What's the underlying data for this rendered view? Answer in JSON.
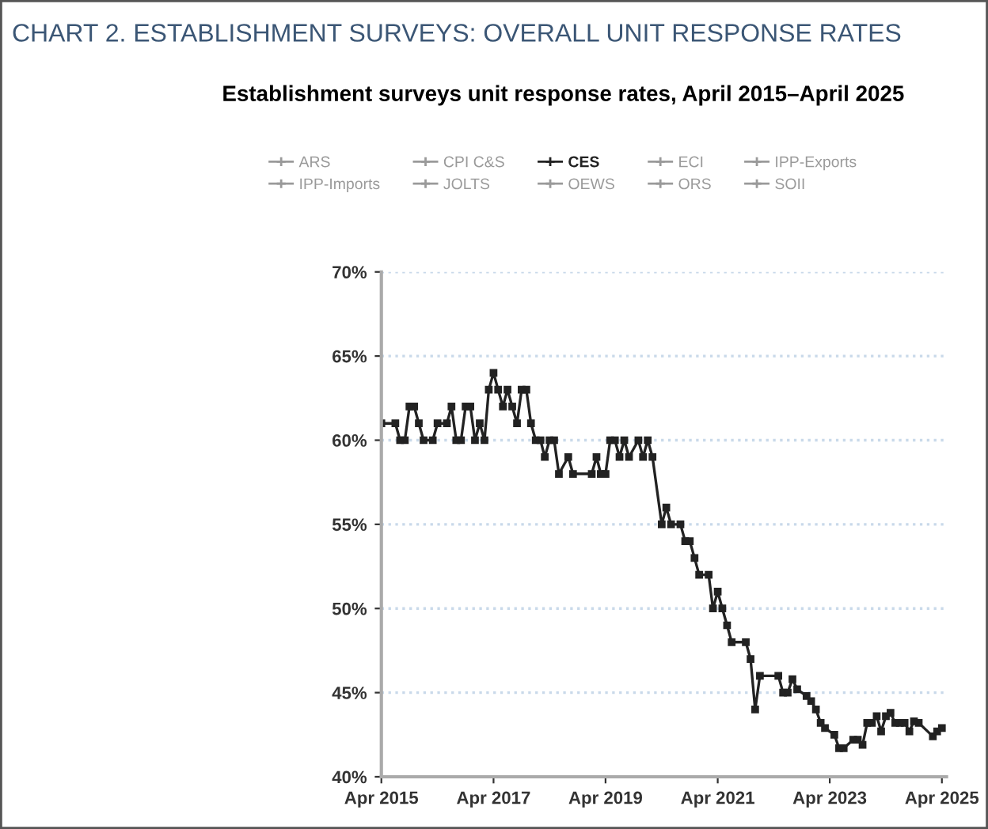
{
  "chart_data": {
    "type": "line",
    "title": "CHART 2. ESTABLISHMENT SURVEYS: OVERALL UNIT RESPONSE RATES",
    "subtitle": "Establishment surveys unit response rates, April 2015–April 2025",
    "x": [
      "2015-04",
      "2015-07",
      "2015-08",
      "2015-09",
      "2015-10",
      "2015-11",
      "2015-12",
      "2016-01",
      "2016-03",
      "2016-04",
      "2016-06",
      "2016-07",
      "2016-08",
      "2016-09",
      "2016-10",
      "2016-11",
      "2016-12",
      "2017-01",
      "2017-02",
      "2017-03",
      "2017-04",
      "2017-05",
      "2017-06",
      "2017-07",
      "2017-08",
      "2017-09",
      "2017-10",
      "2017-11",
      "2017-12",
      "2018-01",
      "2018-02",
      "2018-03",
      "2018-04",
      "2018-05",
      "2018-06",
      "2018-08",
      "2018-09",
      "2019-01",
      "2019-02",
      "2019-03",
      "2019-04",
      "2019-05",
      "2019-06",
      "2019-07",
      "2019-08",
      "2019-09",
      "2019-11",
      "2019-12",
      "2020-01",
      "2020-02",
      "2020-04",
      "2020-05",
      "2020-06",
      "2020-08",
      "2020-09",
      "2020-10",
      "2020-11",
      "2020-12",
      "2021-02",
      "2021-03",
      "2021-04",
      "2021-05",
      "2021-06",
      "2021-07",
      "2021-10",
      "2021-11",
      "2021-12",
      "2022-01",
      "2022-05",
      "2022-06",
      "2022-07",
      "2022-08",
      "2022-09",
      "2022-11",
      "2022-12",
      "2023-01",
      "2023-02",
      "2023-03",
      "2023-05",
      "2023-06",
      "2023-07",
      "2023-09",
      "2023-10",
      "2023-11",
      "2023-12",
      "2024-01",
      "2024-02",
      "2024-03",
      "2024-04",
      "2024-05",
      "2024-06",
      "2024-07",
      "2024-08",
      "2024-09",
      "2024-10",
      "2024-11",
      "2025-02",
      "2025-03",
      "2025-04"
    ],
    "series": [
      {
        "name": "ARS",
        "color": "#9a9a9a",
        "values": [
          null,
          null,
          null,
          null,
          null,
          null,
          null,
          null,
          null,
          null,
          null,
          null,
          null,
          null,
          null,
          null,
          null,
          null,
          null,
          null,
          null,
          null,
          null,
          null,
          null,
          null,
          null,
          null,
          null,
          null,
          null,
          null,
          null,
          null,
          null,
          null,
          null,
          null,
          null,
          null,
          null,
          null,
          null,
          null,
          null,
          null,
          null,
          null,
          null,
          null,
          null,
          null,
          null,
          null,
          null,
          null,
          null,
          null,
          null,
          null,
          null,
          null,
          null,
          null,
          null,
          null,
          null,
          null,
          null,
          null,
          null,
          null,
          null,
          null,
          null,
          null,
          null,
          null,
          null,
          null,
          null,
          null,
          null,
          null,
          null,
          null,
          null,
          null,
          null,
          null,
          null,
          null,
          null,
          null,
          null,
          null,
          null,
          null,
          null
        ]
      },
      {
        "name": "CPI C&S",
        "color": "#9a9a9a",
        "values": [
          null,
          null,
          null,
          null,
          null,
          null,
          null,
          null,
          null,
          null,
          null,
          null,
          null,
          null,
          null,
          null,
          null,
          null,
          null,
          null,
          null,
          null,
          null,
          null,
          null,
          null,
          null,
          null,
          null,
          null,
          null,
          null,
          null,
          null,
          null,
          null,
          null,
          null,
          null,
          null,
          null,
          null,
          null,
          null,
          null,
          null,
          null,
          null,
          null,
          null,
          null,
          null,
          null,
          null,
          null,
          null,
          null,
          null,
          null,
          null,
          null,
          null,
          null,
          null,
          null,
          null,
          null,
          null,
          null,
          null,
          null,
          null,
          null,
          null,
          null,
          null,
          null,
          null,
          null,
          null,
          null,
          null,
          null,
          null,
          null,
          null,
          null,
          null,
          null,
          null,
          null,
          null,
          null,
          null,
          null,
          null,
          null,
          null,
          null
        ]
      },
      {
        "name": "CES",
        "color": "#222222",
        "values": [
          61,
          61,
          60,
          60,
          62,
          62,
          61,
          60,
          60,
          61,
          61,
          62,
          60,
          60,
          62,
          62,
          60,
          61,
          60,
          63,
          64,
          63,
          62,
          63,
          62,
          61,
          63,
          63,
          61,
          60,
          60,
          59,
          60,
          60,
          58,
          59,
          58,
          58,
          59,
          58,
          58,
          60,
          60,
          59,
          60,
          59,
          60,
          59,
          60,
          59,
          55,
          56,
          55,
          55,
          54,
          54,
          53,
          52,
          52,
          50,
          51,
          50,
          49,
          48,
          48,
          47,
          44,
          46,
          46,
          45,
          45,
          45.8,
          45.2,
          44.8,
          44.5,
          44,
          43.2,
          42.9,
          42.5,
          41.7,
          41.7,
          42.2,
          42.2,
          41.9,
          43.2,
          43.2,
          43.6,
          42.7,
          43.6,
          43.8,
          43.2,
          43.2,
          43.2,
          42.7,
          43.3,
          43.2,
          42.4,
          42.7,
          42.9
        ]
      },
      {
        "name": "ECI",
        "color": "#9a9a9a",
        "values": [
          null,
          null,
          null,
          null,
          null,
          null,
          null,
          null,
          null,
          null,
          null,
          null,
          null,
          null,
          null,
          null,
          null,
          null,
          null,
          null,
          null,
          null,
          null,
          null,
          null,
          null,
          null,
          null,
          null,
          null,
          null,
          null,
          null,
          null,
          null,
          null,
          null,
          null,
          null,
          null,
          null,
          null,
          null,
          null,
          null,
          null,
          null,
          null,
          null,
          null,
          null,
          null,
          null,
          null,
          null,
          null,
          null,
          null,
          null,
          null,
          null,
          null,
          null,
          null,
          null,
          null,
          null,
          null,
          null,
          null,
          null,
          null,
          null,
          null,
          null,
          null,
          null,
          null,
          null,
          null,
          null,
          null,
          null,
          null,
          null,
          null,
          null,
          null,
          null,
          null,
          null,
          null,
          null,
          null,
          null,
          null,
          null,
          null,
          null
        ]
      },
      {
        "name": "IPP-Exports",
        "color": "#9a9a9a",
        "values": [
          null,
          null,
          null,
          null,
          null,
          null,
          null,
          null,
          null,
          null,
          null,
          null,
          null,
          null,
          null,
          null,
          null,
          null,
          null,
          null,
          null,
          null,
          null,
          null,
          null,
          null,
          null,
          null,
          null,
          null,
          null,
          null,
          null,
          null,
          null,
          null,
          null,
          null,
          null,
          null,
          null,
          null,
          null,
          null,
          null,
          null,
          null,
          null,
          null,
          null,
          null,
          null,
          null,
          null,
          null,
          null,
          null,
          null,
          null,
          null,
          null,
          null,
          null,
          null,
          null,
          null,
          null,
          null,
          null,
          null,
          null,
          null,
          null,
          null,
          null,
          null,
          null,
          null,
          null,
          null,
          null,
          null,
          null,
          null,
          null,
          null,
          null,
          null,
          null,
          null,
          null,
          null,
          null,
          null,
          null,
          null,
          null,
          null,
          null
        ]
      },
      {
        "name": "IPP-Imports",
        "color": "#9a9a9a",
        "values": [
          null,
          null,
          null,
          null,
          null,
          null,
          null,
          null,
          null,
          null,
          null,
          null,
          null,
          null,
          null,
          null,
          null,
          null,
          null,
          null,
          null,
          null,
          null,
          null,
          null,
          null,
          null,
          null,
          null,
          null,
          null,
          null,
          null,
          null,
          null,
          null,
          null,
          null,
          null,
          null,
          null,
          null,
          null,
          null,
          null,
          null,
          null,
          null,
          null,
          null,
          null,
          null,
          null,
          null,
          null,
          null,
          null,
          null,
          null,
          null,
          null,
          null,
          null,
          null,
          null,
          null,
          null,
          null,
          null,
          null,
          null,
          null,
          null,
          null,
          null,
          null,
          null,
          null,
          null,
          null,
          null,
          null,
          null,
          null,
          null,
          null,
          null,
          null,
          null,
          null,
          null,
          null,
          null,
          null,
          null,
          null,
          null,
          null,
          null
        ]
      },
      {
        "name": "JOLTS",
        "color": "#9a9a9a",
        "values": [
          null,
          null,
          null,
          null,
          null,
          null,
          null,
          null,
          null,
          null,
          null,
          null,
          null,
          null,
          null,
          null,
          null,
          null,
          null,
          null,
          null,
          null,
          null,
          null,
          null,
          null,
          null,
          null,
          null,
          null,
          null,
          null,
          null,
          null,
          null,
          null,
          null,
          null,
          null,
          null,
          null,
          null,
          null,
          null,
          null,
          null,
          null,
          null,
          null,
          null,
          null,
          null,
          null,
          null,
          null,
          null,
          null,
          null,
          null,
          null,
          null,
          null,
          null,
          null,
          null,
          null,
          null,
          null,
          null,
          null,
          null,
          null,
          null,
          null,
          null,
          null,
          null,
          null,
          null,
          null,
          null,
          null,
          null,
          null,
          null,
          null,
          null,
          null,
          null,
          null,
          null,
          null,
          null,
          null,
          null,
          null,
          null,
          null,
          null
        ]
      },
      {
        "name": "OEWS",
        "color": "#9a9a9a",
        "values": [
          null,
          null,
          null,
          null,
          null,
          null,
          null,
          null,
          null,
          null,
          null,
          null,
          null,
          null,
          null,
          null,
          null,
          null,
          null,
          null,
          null,
          null,
          null,
          null,
          null,
          null,
          null,
          null,
          null,
          null,
          null,
          null,
          null,
          null,
          null,
          null,
          null,
          null,
          null,
          null,
          null,
          null,
          null,
          null,
          null,
          null,
          null,
          null,
          null,
          null,
          null,
          null,
          null,
          null,
          null,
          null,
          null,
          null,
          null,
          null,
          null,
          null,
          null,
          null,
          null,
          null,
          null,
          null,
          null,
          null,
          null,
          null,
          null,
          null,
          null,
          null,
          null,
          null,
          null,
          null,
          null,
          null,
          null,
          null,
          null,
          null,
          null,
          null,
          null,
          null,
          null,
          null,
          null,
          null,
          null,
          null,
          null,
          null,
          null
        ]
      },
      {
        "name": "ORS",
        "color": "#9a9a9a",
        "values": [
          null,
          null,
          null,
          null,
          null,
          null,
          null,
          null,
          null,
          null,
          null,
          null,
          null,
          null,
          null,
          null,
          null,
          null,
          null,
          null,
          null,
          null,
          null,
          null,
          null,
          null,
          null,
          null,
          null,
          null,
          null,
          null,
          null,
          null,
          null,
          null,
          null,
          null,
          null,
          null,
          null,
          null,
          null,
          null,
          null,
          null,
          null,
          null,
          null,
          null,
          null,
          null,
          null,
          null,
          null,
          null,
          null,
          null,
          null,
          null,
          null,
          null,
          null,
          null,
          null,
          null,
          null,
          null,
          null,
          null,
          null,
          null,
          null,
          null,
          null,
          null,
          null,
          null,
          null,
          null,
          null,
          null,
          null,
          null,
          null,
          null,
          null,
          null,
          null,
          null,
          null,
          null,
          null,
          null,
          null,
          null,
          null,
          null,
          null
        ]
      },
      {
        "name": "SOII",
        "color": "#9a9a9a",
        "values": [
          null,
          null,
          null,
          null,
          null,
          null,
          null,
          null,
          null,
          null,
          null,
          null,
          null,
          null,
          null,
          null,
          null,
          null,
          null,
          null,
          null,
          null,
          null,
          null,
          null,
          null,
          null,
          null,
          null,
          null,
          null,
          null,
          null,
          null,
          null,
          null,
          null,
          null,
          null,
          null,
          null,
          null,
          null,
          null,
          null,
          null,
          null,
          null,
          null,
          null,
          null,
          null,
          null,
          null,
          null,
          null,
          null,
          null,
          null,
          null,
          null,
          null,
          null,
          null,
          null,
          null,
          null,
          null,
          null,
          null,
          null,
          null,
          null,
          null,
          null,
          null,
          null,
          null,
          null,
          null,
          null,
          null,
          null,
          null,
          null,
          null,
          null,
          null,
          null,
          null,
          null,
          null,
          null,
          null,
          null,
          null,
          null,
          null,
          null
        ]
      }
    ],
    "xlim": [
      "2015-04-01",
      "2025-05-01"
    ],
    "xticks": [
      {
        "value": "2015-04",
        "label": "Apr 2015"
      },
      {
        "value": "2017-04",
        "label": "Apr 2017"
      },
      {
        "value": "2019-04",
        "label": "Apr 2019"
      },
      {
        "value": "2021-04",
        "label": "Apr 2021"
      },
      {
        "value": "2023-04",
        "label": "Apr 2023"
      },
      {
        "value": "2025-04",
        "label": "Apr 2025"
      }
    ],
    "ylim": [
      40,
      70
    ],
    "yticks": [
      {
        "value": 40,
        "label": "40%"
      },
      {
        "value": 45,
        "label": "45%"
      },
      {
        "value": 50,
        "label": "50%"
      },
      {
        "value": 55,
        "label": "55%"
      },
      {
        "value": 60,
        "label": "60%"
      },
      {
        "value": 65,
        "label": "65%"
      },
      {
        "value": 70,
        "label": "70%"
      }
    ],
    "grid": "y",
    "legend": "top",
    "marker": "square",
    "line_style": "solid"
  }
}
